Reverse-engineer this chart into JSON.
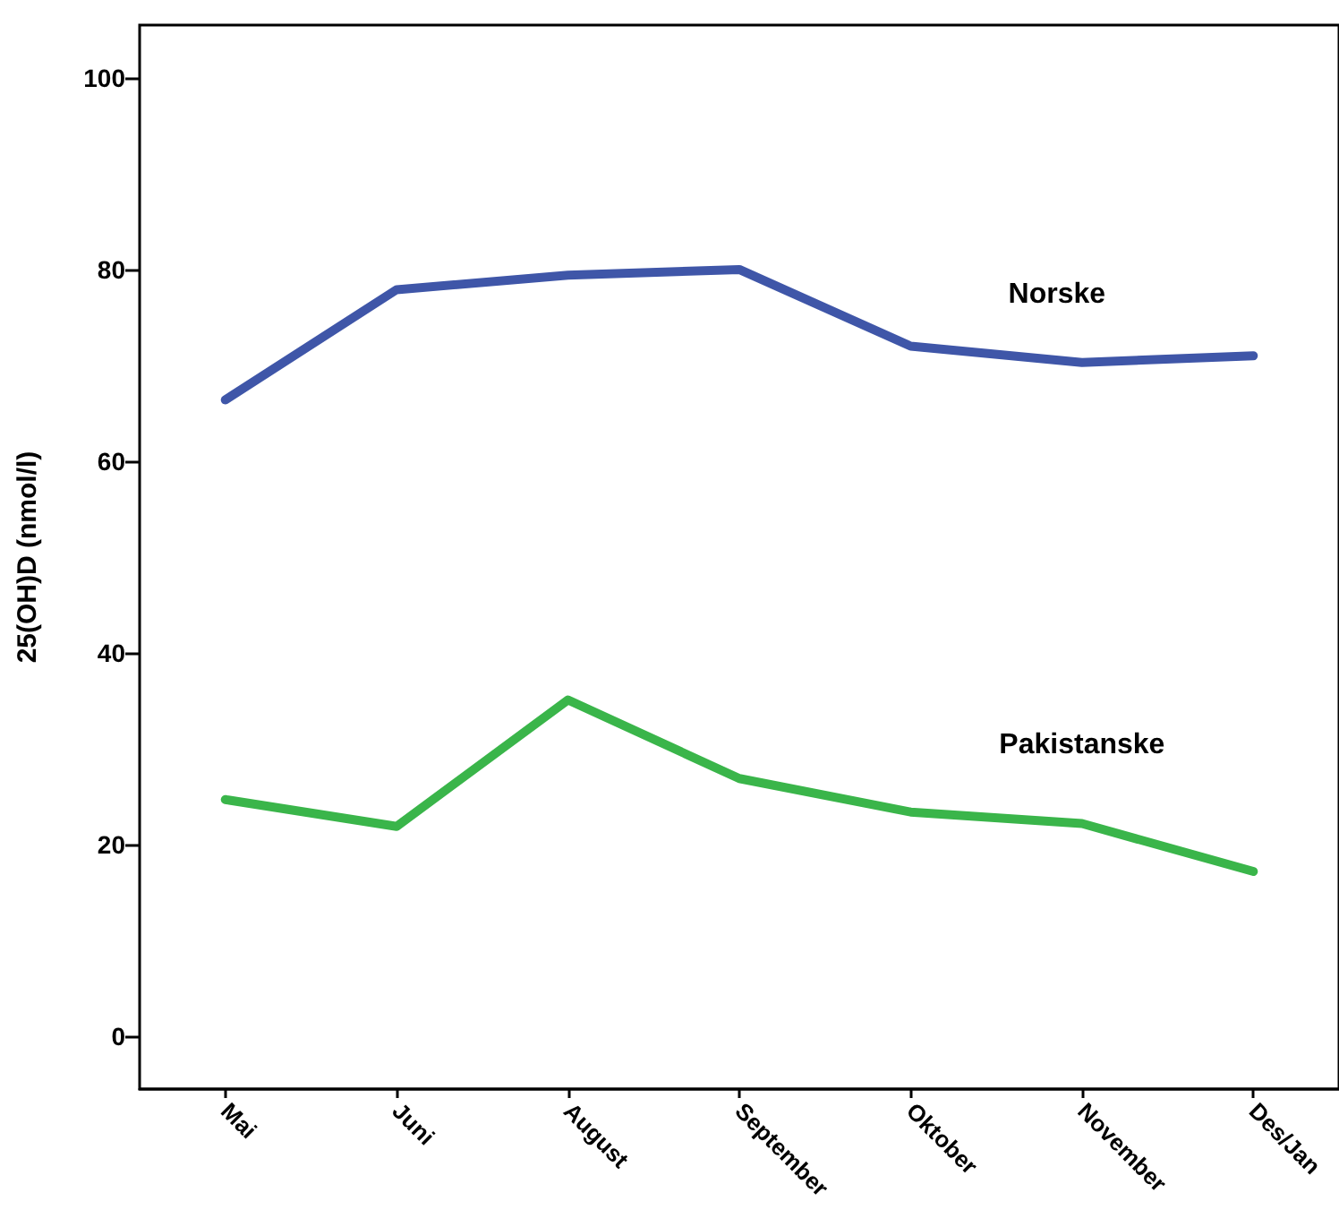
{
  "chart_data": {
    "type": "line",
    "ylabel": "25(OH)D (nmol/l)",
    "categories": [
      "Mai",
      "Juni",
      "August",
      "September",
      "Oktober",
      "November",
      "Des/Jan"
    ],
    "series": [
      {
        "name": "Norske",
        "color": "#3f56a8",
        "values": [
          66.4,
          77.9,
          79.4,
          80,
          72,
          70.3,
          71
        ]
      },
      {
        "name": "Pakistanske",
        "color": "#3ab54a",
        "values": [
          24.7,
          21.9,
          35.1,
          26.9,
          23.4,
          22.2,
          17.2
        ]
      }
    ],
    "ylim": [
      -5.5,
      105.5
    ],
    "yticks": [
      0,
      20,
      40,
      60,
      80,
      100
    ],
    "grid": false,
    "legend": false,
    "marker": "none",
    "line_style": "solid"
  }
}
